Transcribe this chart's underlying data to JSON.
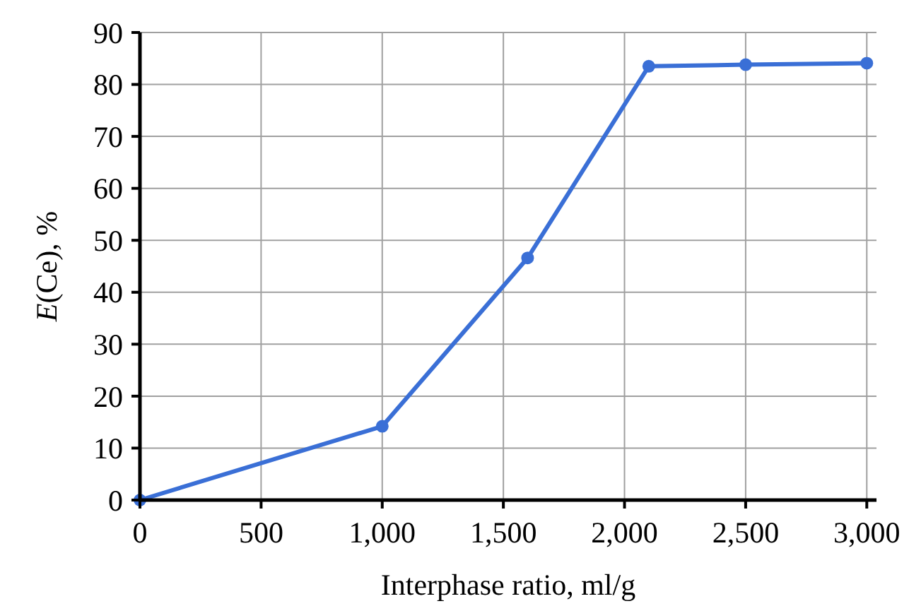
{
  "chart_data": {
    "type": "line",
    "xlabel": "Interphase ratio, ml/g",
    "ylabel": "E(Ce), %",
    "x": [
      0,
      1000,
      1600,
      2100,
      2500,
      3000
    ],
    "series": [
      {
        "color": "#3a6fd6",
        "values": [
          0,
          14.2,
          46.6,
          83.5,
          83.8,
          84.1
        ]
      }
    ],
    "xlim": [
      0,
      3040
    ],
    "ylim": [
      0,
      90
    ],
    "xticks": [
      0,
      500,
      {
        "value": 1000,
        "label": "1,000"
      },
      {
        "value": 1500,
        "label": "1,500"
      },
      {
        "value": 2000,
        "label": "2,000"
      },
      {
        "value": 2500,
        "label": "2,500"
      },
      {
        "value": 3000,
        "label": "3,000"
      }
    ],
    "yticks": [
      0,
      10,
      20,
      30,
      40,
      50,
      60,
      70,
      80,
      90
    ],
    "grid": true,
    "marker": "circle",
    "line_style": "solid"
  }
}
